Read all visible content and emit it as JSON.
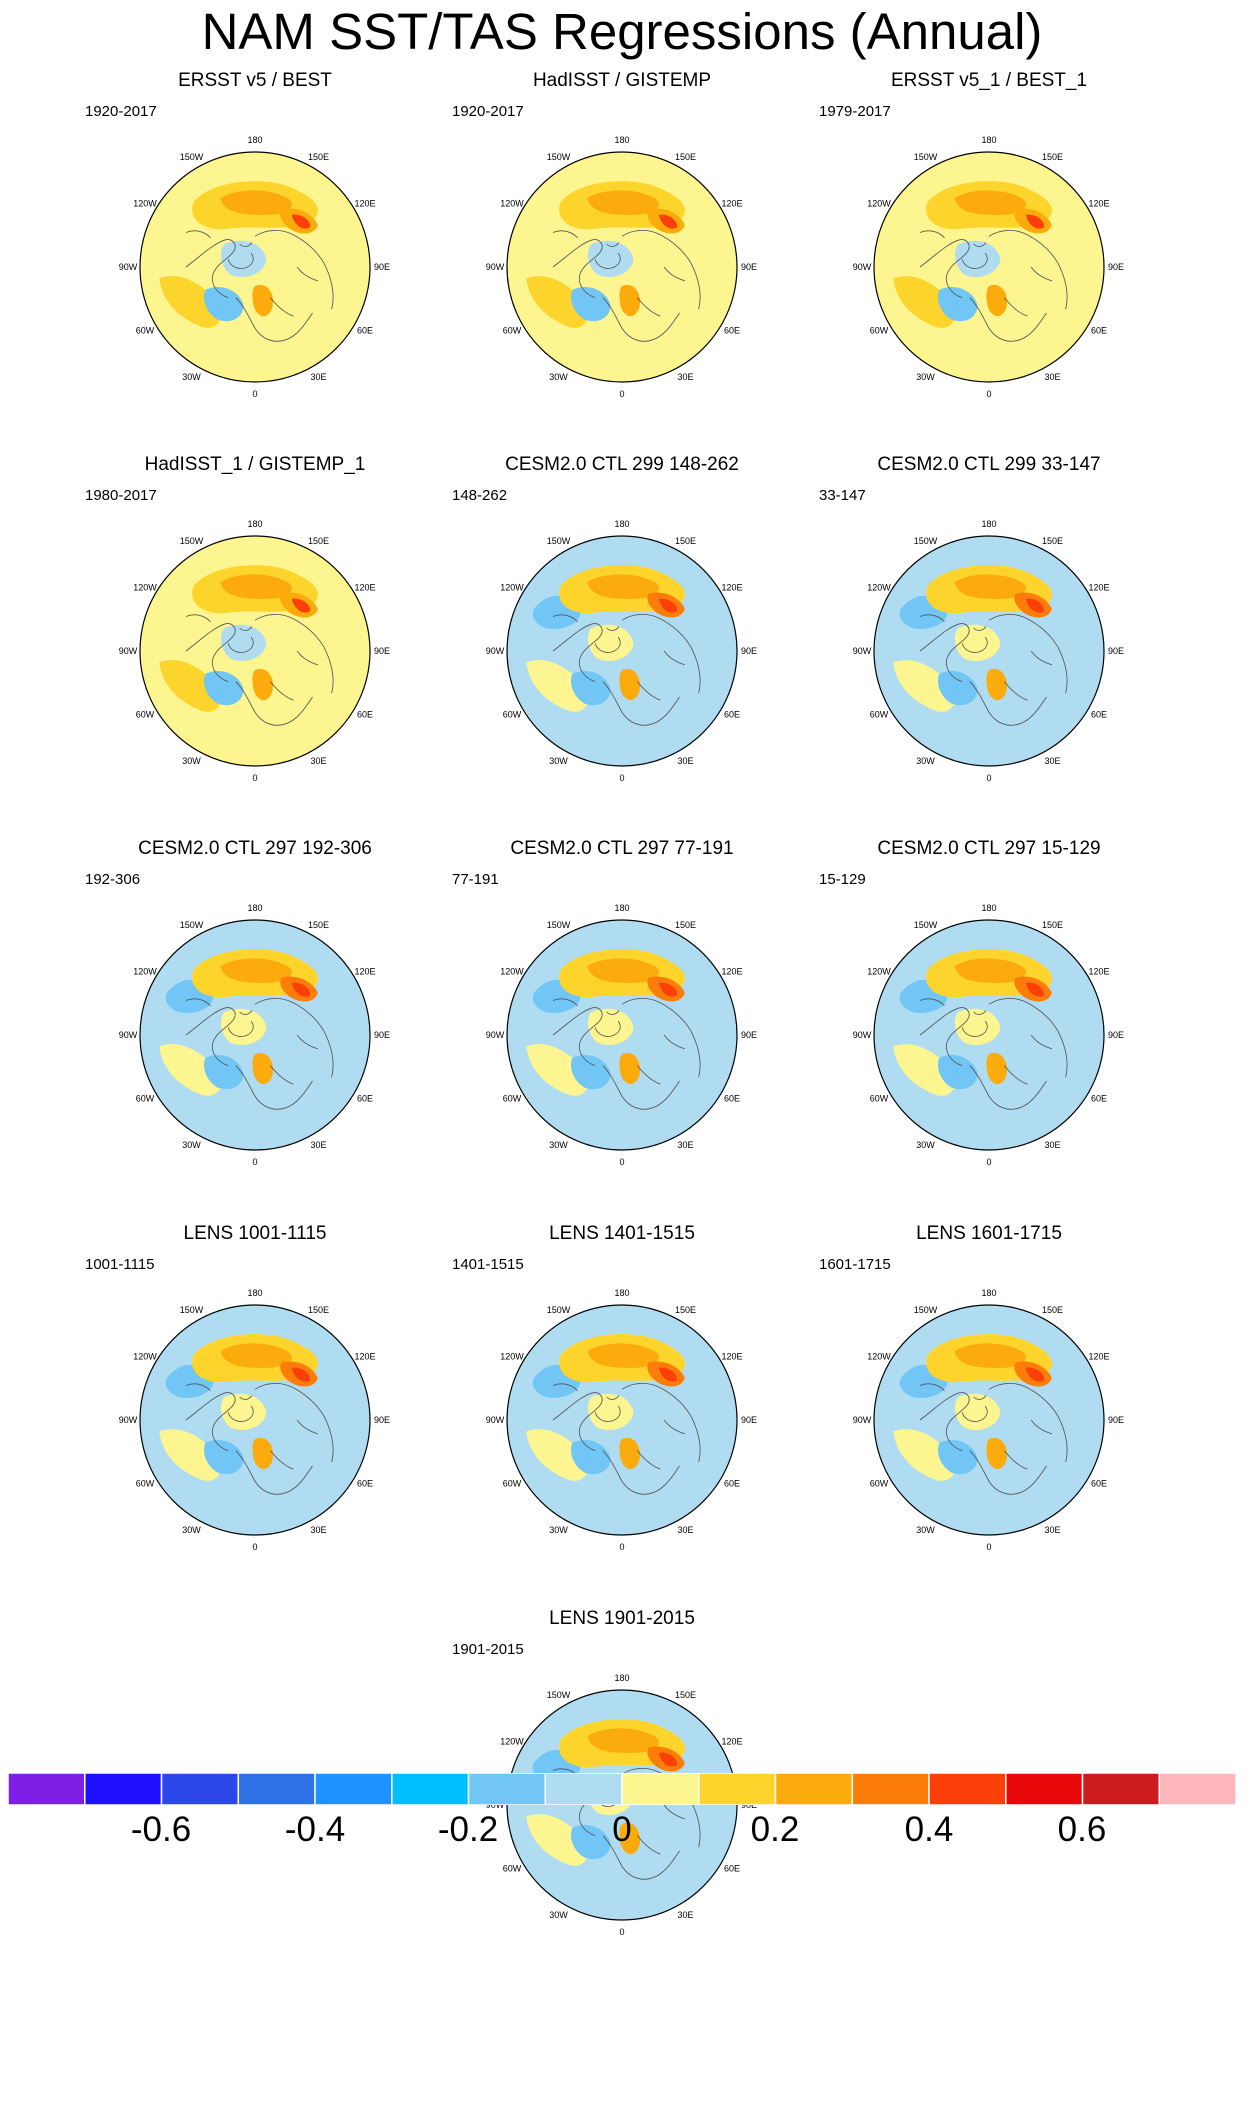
{
  "title": "NAM SST/TAS Regressions (Annual)",
  "colors": {
    "levels": [
      "#7f1fe6",
      "#1f0fff",
      "#2d48e8",
      "#3171e6",
      "#1e93ff",
      "#00bfff",
      "#72c6f5",
      "#b0dcf2",
      "#fdf58f",
      "#fdd42b",
      "#fbab0c",
      "#fd7d0a",
      "#fc3f08",
      "#e8080a",
      "#cc1c1e",
      "#fdb6b9"
    ],
    "coast": "#555555",
    "missing": "#ffffff"
  },
  "longitude_labels": [
    "180",
    "150E",
    "120E",
    "90E",
    "60E",
    "30E",
    "0",
    "30W",
    "60W",
    "90W",
    "120W",
    "150W"
  ],
  "panels": [
    {
      "title": "ERSST v5 / BEST",
      "period": "1920-2017"
    },
    {
      "title": "HadISST / GISTEMP",
      "period": "1920-2017"
    },
    {
      "title": "ERSST v5_1 / BEST_1",
      "period": "1979-2017"
    },
    {
      "title": "HadISST_1 / GISTEMP_1",
      "period": "1980-2017"
    },
    {
      "title": "CESM2.0 CTL 299 148-262",
      "period": "148-262"
    },
    {
      "title": "CESM2.0 CTL 299 33-147",
      "period": "33-147"
    },
    {
      "title": "CESM2.0 CTL 297 192-306",
      "period": "192-306"
    },
    {
      "title": "CESM2.0 CTL 297 77-191",
      "period": "77-191"
    },
    {
      "title": "CESM2.0 CTL 297 15-129",
      "period": "15-129"
    },
    {
      "title": "LENS 1001-1115",
      "period": "1001-1115"
    },
    {
      "title": "LENS 1401-1515",
      "period": "1401-1515"
    },
    {
      "title": "LENS 1601-1715",
      "period": "1601-1715"
    },
    {
      "title": "LENS 1901-2015",
      "period": "1901-2015"
    }
  ],
  "colorbar": {
    "labels": [
      "-0.6",
      "-0.4",
      "-0.2",
      "0",
      "0.2",
      "0.4",
      "0.6"
    ]
  }
}
